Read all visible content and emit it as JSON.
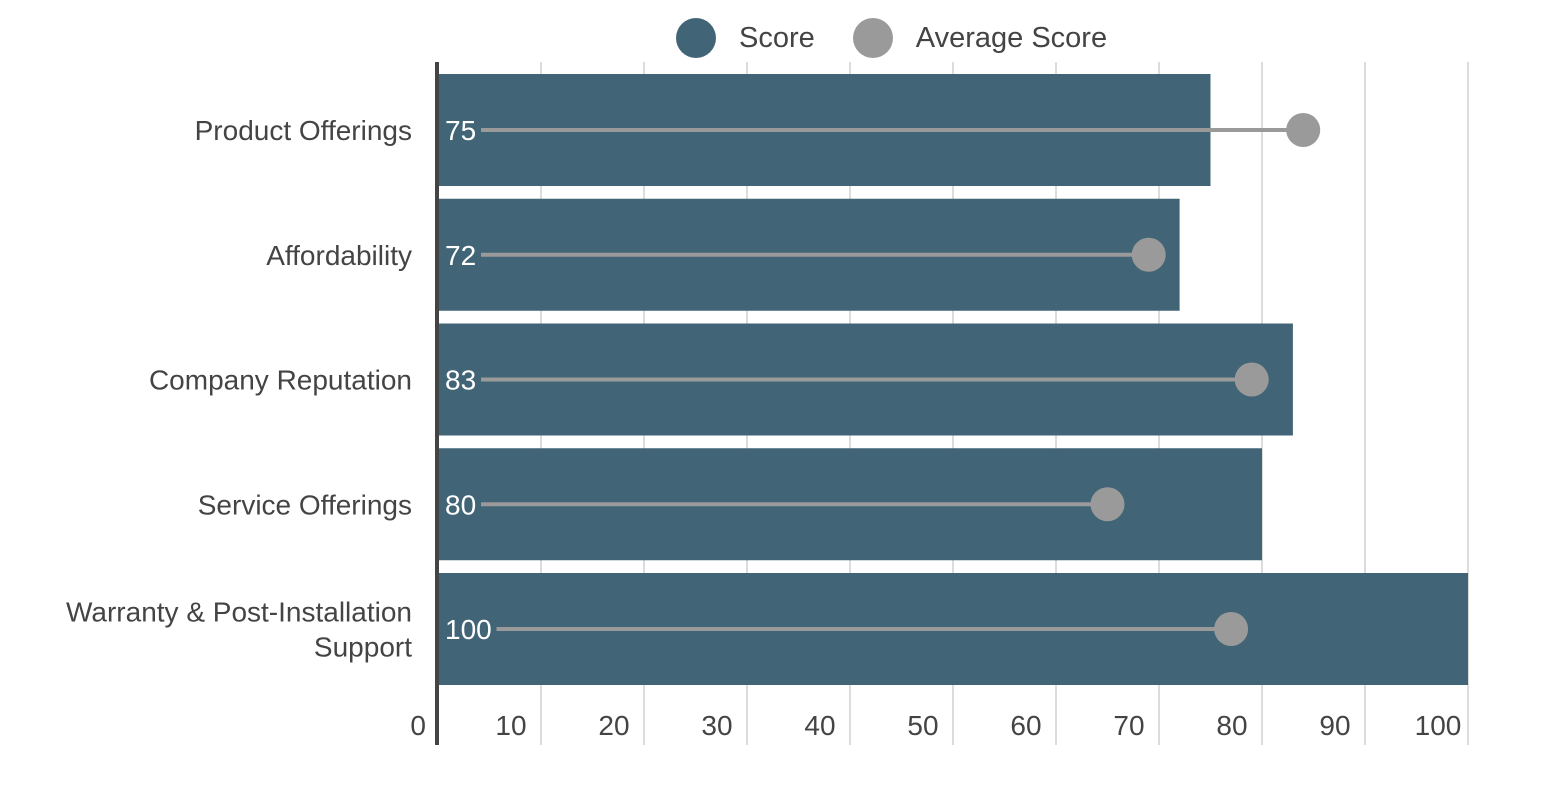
{
  "chart_data": {
    "type": "bar",
    "orientation": "horizontal",
    "categories": [
      "Product Offerings",
      "Affordability",
      "Company Reputation",
      "Service Offerings",
      "Warranty & Post-Installation Support"
    ],
    "category_lines": [
      [
        "Product Offerings"
      ],
      [
        "Affordability"
      ],
      [
        "Company Reputation"
      ],
      [
        "Service Offerings"
      ],
      [
        "Warranty & Post-Installation",
        "Support"
      ]
    ],
    "series": [
      {
        "name": "Score",
        "values": [
          75,
          72,
          83,
          80,
          100
        ],
        "color": "#416577",
        "marker": "bar"
      },
      {
        "name": "Average Score",
        "values": [
          84,
          69,
          79,
          65,
          77
        ],
        "color": "#9a9a9a",
        "marker": "dot"
      }
    ],
    "data_labels": [
      "75",
      "72",
      "83",
      "80",
      "100"
    ],
    "xlim": [
      0,
      100
    ],
    "xticks": [
      0,
      10,
      20,
      30,
      40,
      50,
      60,
      70,
      80,
      90,
      100
    ],
    "grid": "vertical",
    "legend_position": "top-center",
    "title": "",
    "xlabel": "",
    "ylabel": ""
  }
}
